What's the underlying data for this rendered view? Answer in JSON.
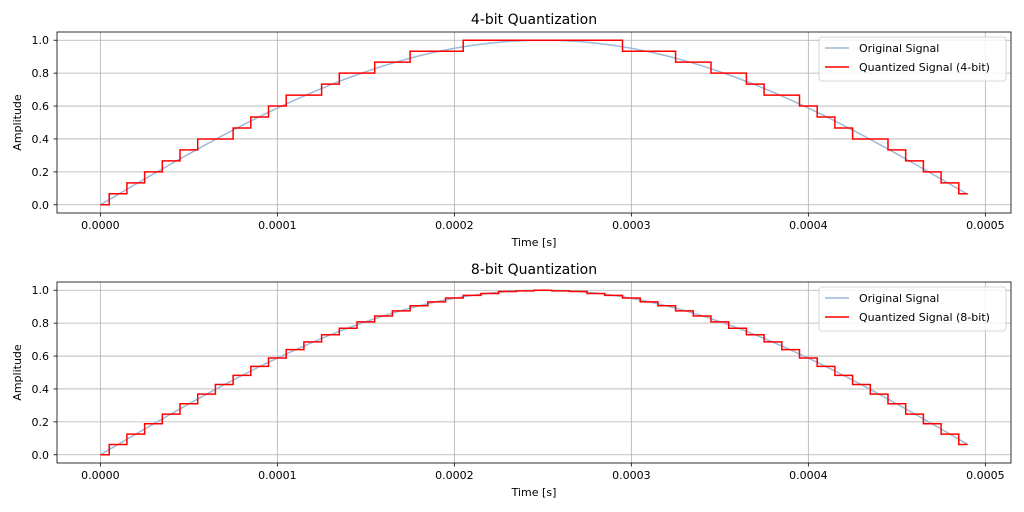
{
  "chart_data": [
    {
      "type": "line",
      "title": "4-bit Quantization",
      "xlabel": "Time [s]",
      "ylabel": "Amplitude",
      "xlim": [
        -2.45e-05,
        0.0005145
      ],
      "ylim": [
        -0.05,
        1.05
      ],
      "xticks": [
        0,
        0.0001,
        0.0002,
        0.0003,
        0.0004,
        0.0005
      ],
      "xtick_labels": [
        "0.0000",
        "0.0001",
        "0.0002",
        "0.0003",
        "0.0004",
        "0.0005"
      ],
      "yticks": [
        0,
        0.2,
        0.4,
        0.6,
        0.8,
        1.0
      ],
      "ytick_labels": [
        "0.0",
        "0.2",
        "0.4",
        "0.6",
        "0.8",
        "1.0"
      ],
      "grid": true,
      "legend_position": "upper right",
      "series": [
        {
          "name": "Original Signal",
          "kind": "sine",
          "amplitude": 1.0,
          "period_s": 0.001,
          "x_start": 0,
          "x_end": 0.00049,
          "x_step": 1e-05,
          "color": "#9dbad9"
        },
        {
          "name": "Quantized Signal (4-bit)",
          "kind": "step",
          "bits": 4,
          "color": "#ff0000"
        }
      ]
    },
    {
      "type": "line",
      "title": "8-bit Quantization",
      "xlabel": "Time [s]",
      "ylabel": "Amplitude",
      "xlim": [
        -2.45e-05,
        0.0005145
      ],
      "ylim": [
        -0.05,
        1.05
      ],
      "xticks": [
        0,
        0.0001,
        0.0002,
        0.0003,
        0.0004,
        0.0005
      ],
      "xtick_labels": [
        "0.0000",
        "0.0001",
        "0.0002",
        "0.0003",
        "0.0004",
        "0.0005"
      ],
      "yticks": [
        0,
        0.2,
        0.4,
        0.6,
        0.8,
        1.0
      ],
      "ytick_labels": [
        "0.0",
        "0.2",
        "0.4",
        "0.6",
        "0.8",
        "1.0"
      ],
      "grid": true,
      "legend_position": "upper right",
      "series": [
        {
          "name": "Original Signal",
          "kind": "sine",
          "amplitude": 1.0,
          "period_s": 0.001,
          "x_start": 0,
          "x_end": 0.00049,
          "x_step": 1e-05,
          "color": "#9dbad9"
        },
        {
          "name": "Quantized Signal (8-bit)",
          "kind": "step",
          "bits": 8,
          "color": "#ff0000"
        }
      ]
    }
  ]
}
